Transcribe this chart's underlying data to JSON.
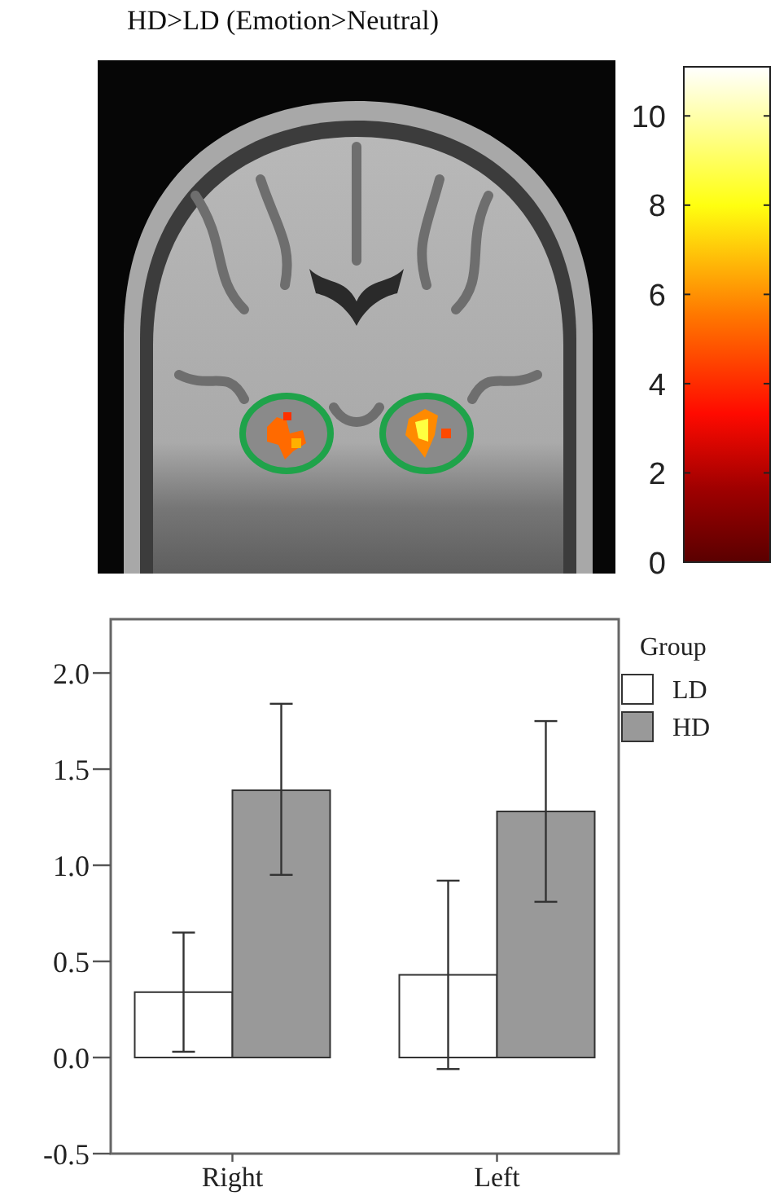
{
  "chart_data": {
    "type": "bar",
    "title": "HD>LD (Emotion>Neutral)",
    "categories": [
      "Right",
      "Left"
    ],
    "series": [
      {
        "name": "LD",
        "color": "#ffffff",
        "values": [
          0.34,
          0.43
        ],
        "errors": [
          [
            0.03,
            0.65
          ],
          [
            -0.06,
            0.92
          ]
        ]
      },
      {
        "name": "HD",
        "color": "#999999",
        "values": [
          1.39,
          1.28
        ],
        "errors": [
          [
            0.95,
            1.84
          ],
          [
            0.81,
            1.75
          ]
        ]
      }
    ],
    "ylim": [
      -0.5,
      2.28
    ],
    "yticks": [
      {
        "value": -0.5,
        "label": "-0.5"
      },
      {
        "value": 0,
        "label": "0.0"
      },
      {
        "value": 0.5,
        "label": "0.5"
      },
      {
        "value": 1,
        "label": "1.0"
      },
      {
        "value": 1.5,
        "label": "1.5"
      },
      {
        "value": 2,
        "label": "2.0"
      }
    ],
    "legend": "top right",
    "legend_title": "Group",
    "grid": false,
    "clim": [
      0,
      11.1
    ],
    "cticks": [
      0,
      2,
      4,
      6,
      8,
      10
    ]
  }
}
